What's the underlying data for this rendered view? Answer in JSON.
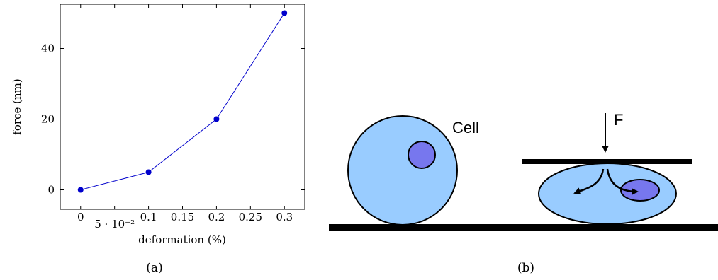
{
  "chart_data": {
    "type": "line",
    "xlabel": "deformation (%)",
    "ylabel": "force (nm)",
    "x": [
      0,
      0.1,
      0.2,
      0.3
    ],
    "y": [
      0,
      5,
      20,
      50
    ],
    "xlim": [
      -0.03,
      0.33
    ],
    "ylim": [
      -5.5,
      52.5
    ],
    "x_ticks": [
      0,
      0.05,
      0.1,
      0.15,
      0.2,
      0.25,
      0.3
    ],
    "x_tick_labels": [
      "0",
      "5 · 10⁻²",
      "0.1",
      "0.15",
      "0.2",
      "0.25",
      "0.3"
    ],
    "y_ticks": [
      0,
      20,
      40
    ],
    "y_tick_labels": [
      "0",
      "20",
      "40"
    ],
    "series_color": "#0000cc",
    "grid": false,
    "caption": "(a)"
  },
  "diagram": {
    "cell_label": "Cell",
    "force_label": "F",
    "caption": "(b)",
    "colors": {
      "cytoplasm": "#99ccff",
      "nucleus": "#7777ee",
      "outline": "#000000"
    }
  }
}
